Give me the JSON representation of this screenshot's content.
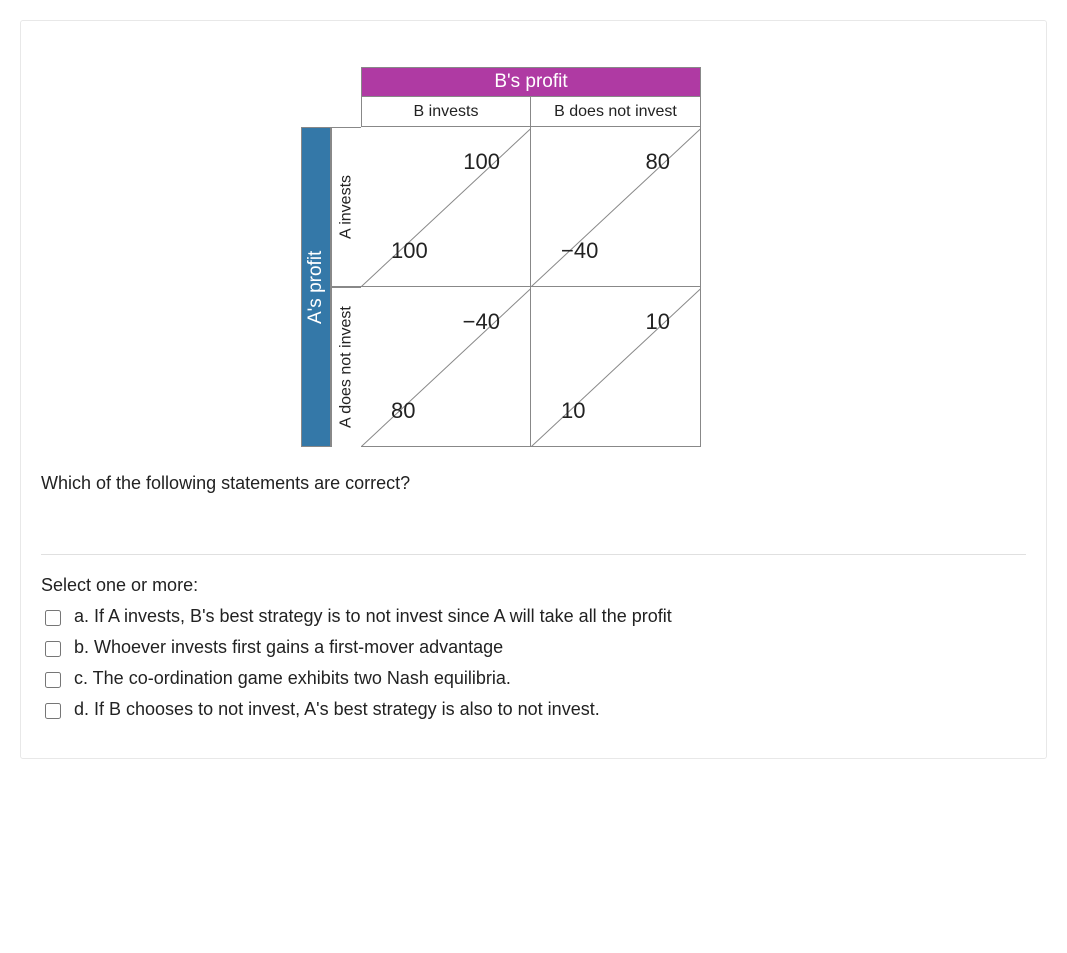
{
  "matrix": {
    "b_profit_label": "B's profit",
    "a_profit_label": "A's profit",
    "b_invests_label": "B invests",
    "b_not_invest_label": "B does not invest",
    "a_invests_label": "A invests",
    "a_not_invest_label": "A does not invest",
    "header_b_color": "#af3aa3",
    "header_a_color": "#3478a8",
    "header_text_color": "#ffffff",
    "border_color": "#888888",
    "cells": {
      "tl": {
        "upper": "100",
        "lower": "100"
      },
      "tr": {
        "upper": "80",
        "lower": "−40"
      },
      "bl": {
        "upper": "−40",
        "lower": "80"
      },
      "br": {
        "upper": "10",
        "lower": "10"
      }
    },
    "value_fontsize": 22,
    "header_label_fontsize": 16
  },
  "question": "Which of the following statements are correct?",
  "select_prompt": "Select one or more:",
  "options": {
    "a": "a. If A invests, B's best strategy is to not invest since A will take all the profit",
    "b": "b. Whoever invests first gains a first-mover advantage",
    "c": "c. The co-ordination game exhibits two Nash equilibria.",
    "d": "d. If B chooses to not invest, A's best strategy is also to not invest."
  }
}
